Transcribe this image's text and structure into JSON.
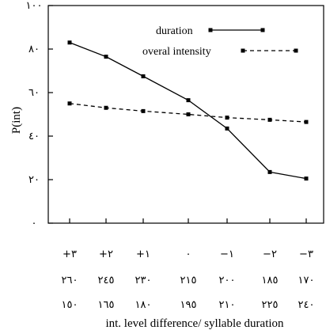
{
  "chart_data": {
    "type": "line",
    "ylabel": "P(int)",
    "xlabel": "int. level difference/ syllable duration",
    "ylim": [
      0,
      100
    ],
    "y_ticks": [
      "٠",
      "٢٠",
      "٤٠",
      "٦٠",
      "٨٠",
      "١٠٠"
    ],
    "y_tick_values": [
      0,
      20,
      40,
      60,
      80,
      100
    ],
    "x_label_rows": [
      [
        "+٣",
        "+٢",
        "+١",
        "٠",
        "−١",
        "−٢",
        "−٣"
      ],
      [
        "٢٦٠",
        "٢٤٥",
        "٢٣٠",
        "٢١٥",
        "٢٠٠",
        "١٨٥",
        "١٧٠"
      ],
      [
        "١٥٠",
        "١٦٥",
        "١٨٠",
        "١٩٥",
        "٢١٠",
        "٢٢٥",
        "٢٤٠"
      ]
    ],
    "grid": false,
    "legend_position": "top-right",
    "series": [
      {
        "name": "duration",
        "style": "solid",
        "color": "#000000",
        "values": [
          83,
          76.5,
          67.5,
          56.5,
          43.5,
          23.5,
          20.5
        ]
      },
      {
        "name": "overal intensity",
        "style": "dashed",
        "color": "#000000",
        "values": [
          55,
          53,
          51.5,
          50,
          48.5,
          47.5,
          46.5
        ]
      }
    ]
  }
}
